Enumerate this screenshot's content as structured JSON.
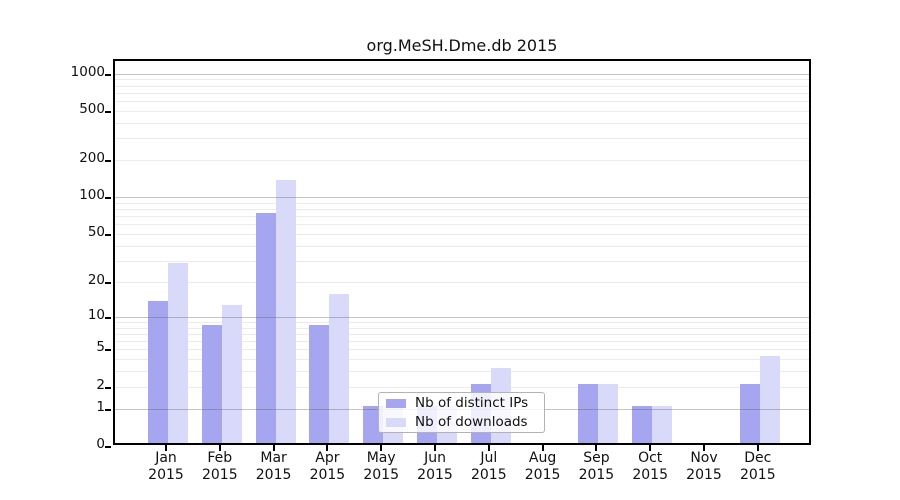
{
  "chart_data": {
    "type": "bar",
    "title": "org.MeSH.Dme.db 2015",
    "categories": [
      "Jan",
      "Feb",
      "Mar",
      "Apr",
      "May",
      "Jun",
      "Jul",
      "Aug",
      "Sep",
      "Oct",
      "Nov",
      "Dec"
    ],
    "category_year": "2015",
    "series": [
      {
        "name": "Nb of distinct IPs",
        "color": "#a5a5f0",
        "values": [
          13,
          8,
          70,
          8,
          1,
          1,
          2,
          0,
          2,
          1,
          0,
          2
        ]
      },
      {
        "name": "Nb of downloads",
        "color": "#d9d9f9",
        "values": [
          27,
          12,
          130,
          15,
          1,
          1,
          3,
          0,
          2,
          1,
          0,
          4
        ]
      }
    ],
    "y_axis": {
      "scale": "log1p",
      "tick_labels": [
        0,
        1,
        2,
        5,
        10,
        20,
        50,
        100,
        200,
        500,
        1000
      ],
      "major_gridlines": [
        1,
        10,
        100,
        1000
      ],
      "minor_gridlines": [
        2,
        3,
        4,
        5,
        6,
        7,
        8,
        9,
        20,
        30,
        40,
        50,
        60,
        70,
        80,
        90,
        200,
        300,
        400,
        500,
        600,
        700,
        800,
        900
      ],
      "range": [
        0,
        1000
      ]
    },
    "xlabel": "",
    "ylabel": "",
    "grid": true,
    "legend_position": "lower center-left, inside plot"
  },
  "colors": {
    "bar_distinct_ips": "#a5a5f0",
    "bar_downloads": "#d9d9f9",
    "axis": "#000000",
    "grid_major": "#a8a8a8",
    "grid_minor": "#ebebeb",
    "background": "#ffffff"
  }
}
